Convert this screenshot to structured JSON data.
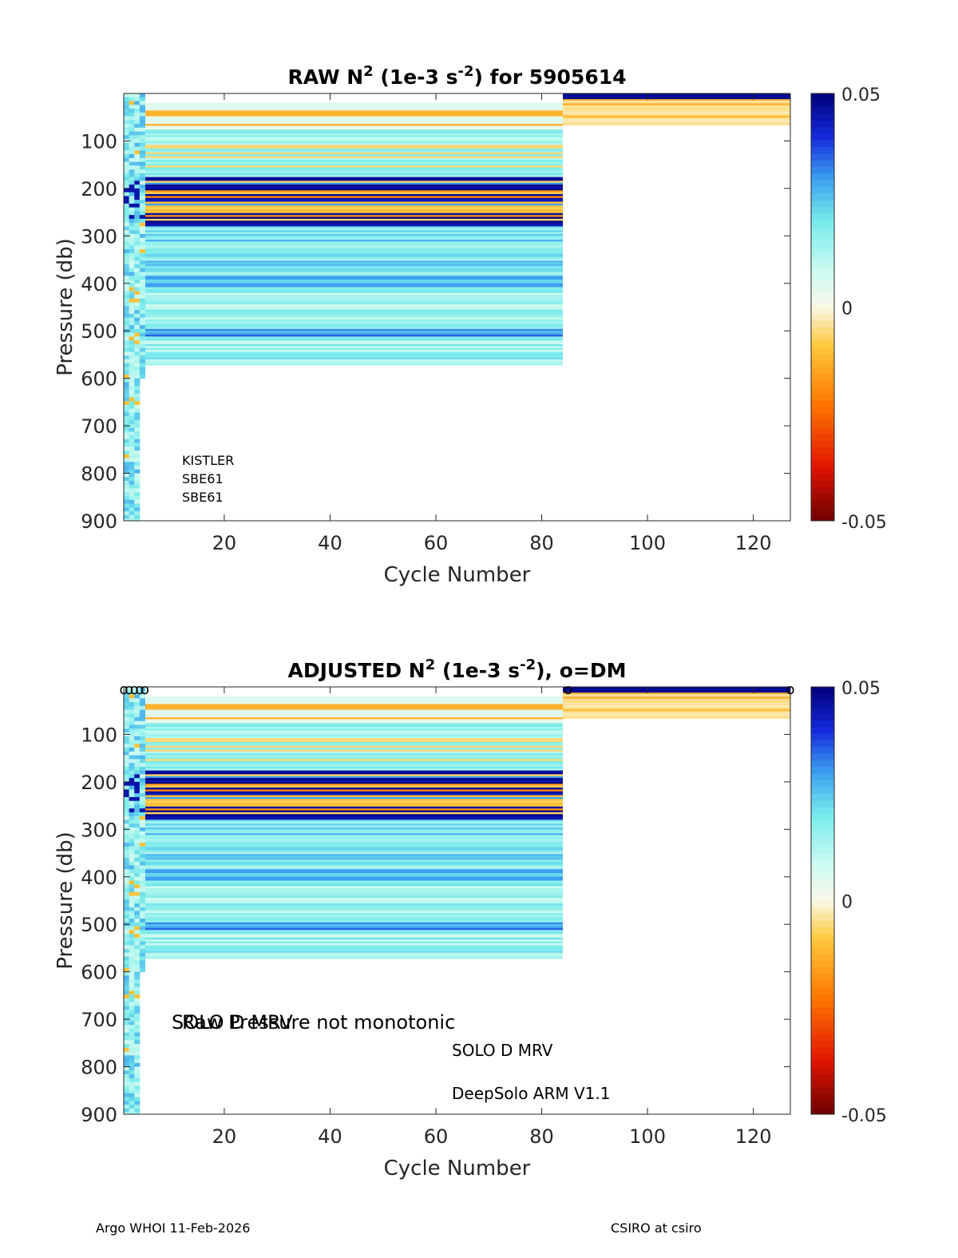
{
  "chart_data": [
    {
      "type": "heatmap",
      "title": "RAW N2 (1e-3 s-2) for 5905614",
      "title_parts": {
        "a": "RAW N",
        "sup1": "2",
        "b": " (1e-3 s",
        "sup2": "-2",
        "c": ") for 5905614"
      },
      "xlabel": "Cycle Number",
      "ylabel": "Pressure (db)",
      "xlim": [
        1,
        127
      ],
      "ylim": [
        900,
        0
      ],
      "xticks": [
        20,
        40,
        60,
        80,
        100,
        120
      ],
      "yticks": [
        100,
        200,
        300,
        400,
        500,
        600,
        700,
        800,
        900
      ],
      "colorbar": {
        "range": [
          -0.05,
          0.05
        ],
        "ticks": [
          "0.05",
          "0",
          "-0.05"
        ],
        "colormap": "blue-cyan-white-orange-red"
      },
      "annotations": [
        "KISTLER",
        "SBE61",
        "SBE61"
      ],
      "regions": [
        {
          "name": "early-cycles",
          "cycles": [
            1,
            5
          ],
          "pressure": [
            0,
            940
          ],
          "pattern": "variable"
        },
        {
          "name": "mid-cycles",
          "cycles": [
            5,
            84
          ],
          "pressure": [
            20,
            570
          ],
          "pattern": "layered"
        },
        {
          "name": "late-cycles",
          "cycles": [
            84,
            127
          ],
          "pressure": [
            0,
            65
          ],
          "pattern": "shallow-orange"
        }
      ],
      "dm_markers": []
    },
    {
      "type": "heatmap",
      "title": "ADJUSTED N2 (1e-3 s-2), o=DM",
      "title_parts": {
        "a": "ADJUSTED N",
        "sup1": "2",
        "b": " (1e-3 s",
        "sup2": "-2",
        "c": "), o=DM"
      },
      "xlabel": "Cycle Number",
      "ylabel": "Pressure (db)",
      "xlim": [
        1,
        127
      ],
      "ylim": [
        900,
        0
      ],
      "xticks": [
        20,
        40,
        60,
        80,
        100,
        120
      ],
      "yticks": [
        100,
        200,
        300,
        400,
        500,
        600,
        700,
        800,
        900
      ],
      "colorbar": {
        "range": [
          -0.05,
          0.05
        ],
        "ticks": [
          "0.05",
          "0",
          "-0.05"
        ],
        "colormap": "blue-cyan-white-orange-red"
      },
      "annotations": [
        "SOLO D MRV",
        "Raw Pressure not monotonic",
        "SOLO D MRV",
        "DeepSolo ARM V1.1"
      ],
      "regions": [
        {
          "name": "early-cycles",
          "cycles": [
            1,
            5
          ],
          "pressure": [
            0,
            940
          ],
          "pattern": "variable"
        },
        {
          "name": "mid-cycles",
          "cycles": [
            5,
            84
          ],
          "pressure": [
            20,
            570
          ],
          "pattern": "layered"
        },
        {
          "name": "late-cycles",
          "cycles": [
            84,
            127
          ],
          "pressure": [
            0,
            65
          ],
          "pattern": "shallow-orange"
        }
      ],
      "dm_markers": [
        1,
        2,
        3,
        4,
        5,
        85,
        127
      ],
      "dm_marker_symbol": "o"
    }
  ],
  "footer": {
    "left": "Argo WHOI 11-Feb-2026",
    "right": "CSIRO at csiro"
  }
}
